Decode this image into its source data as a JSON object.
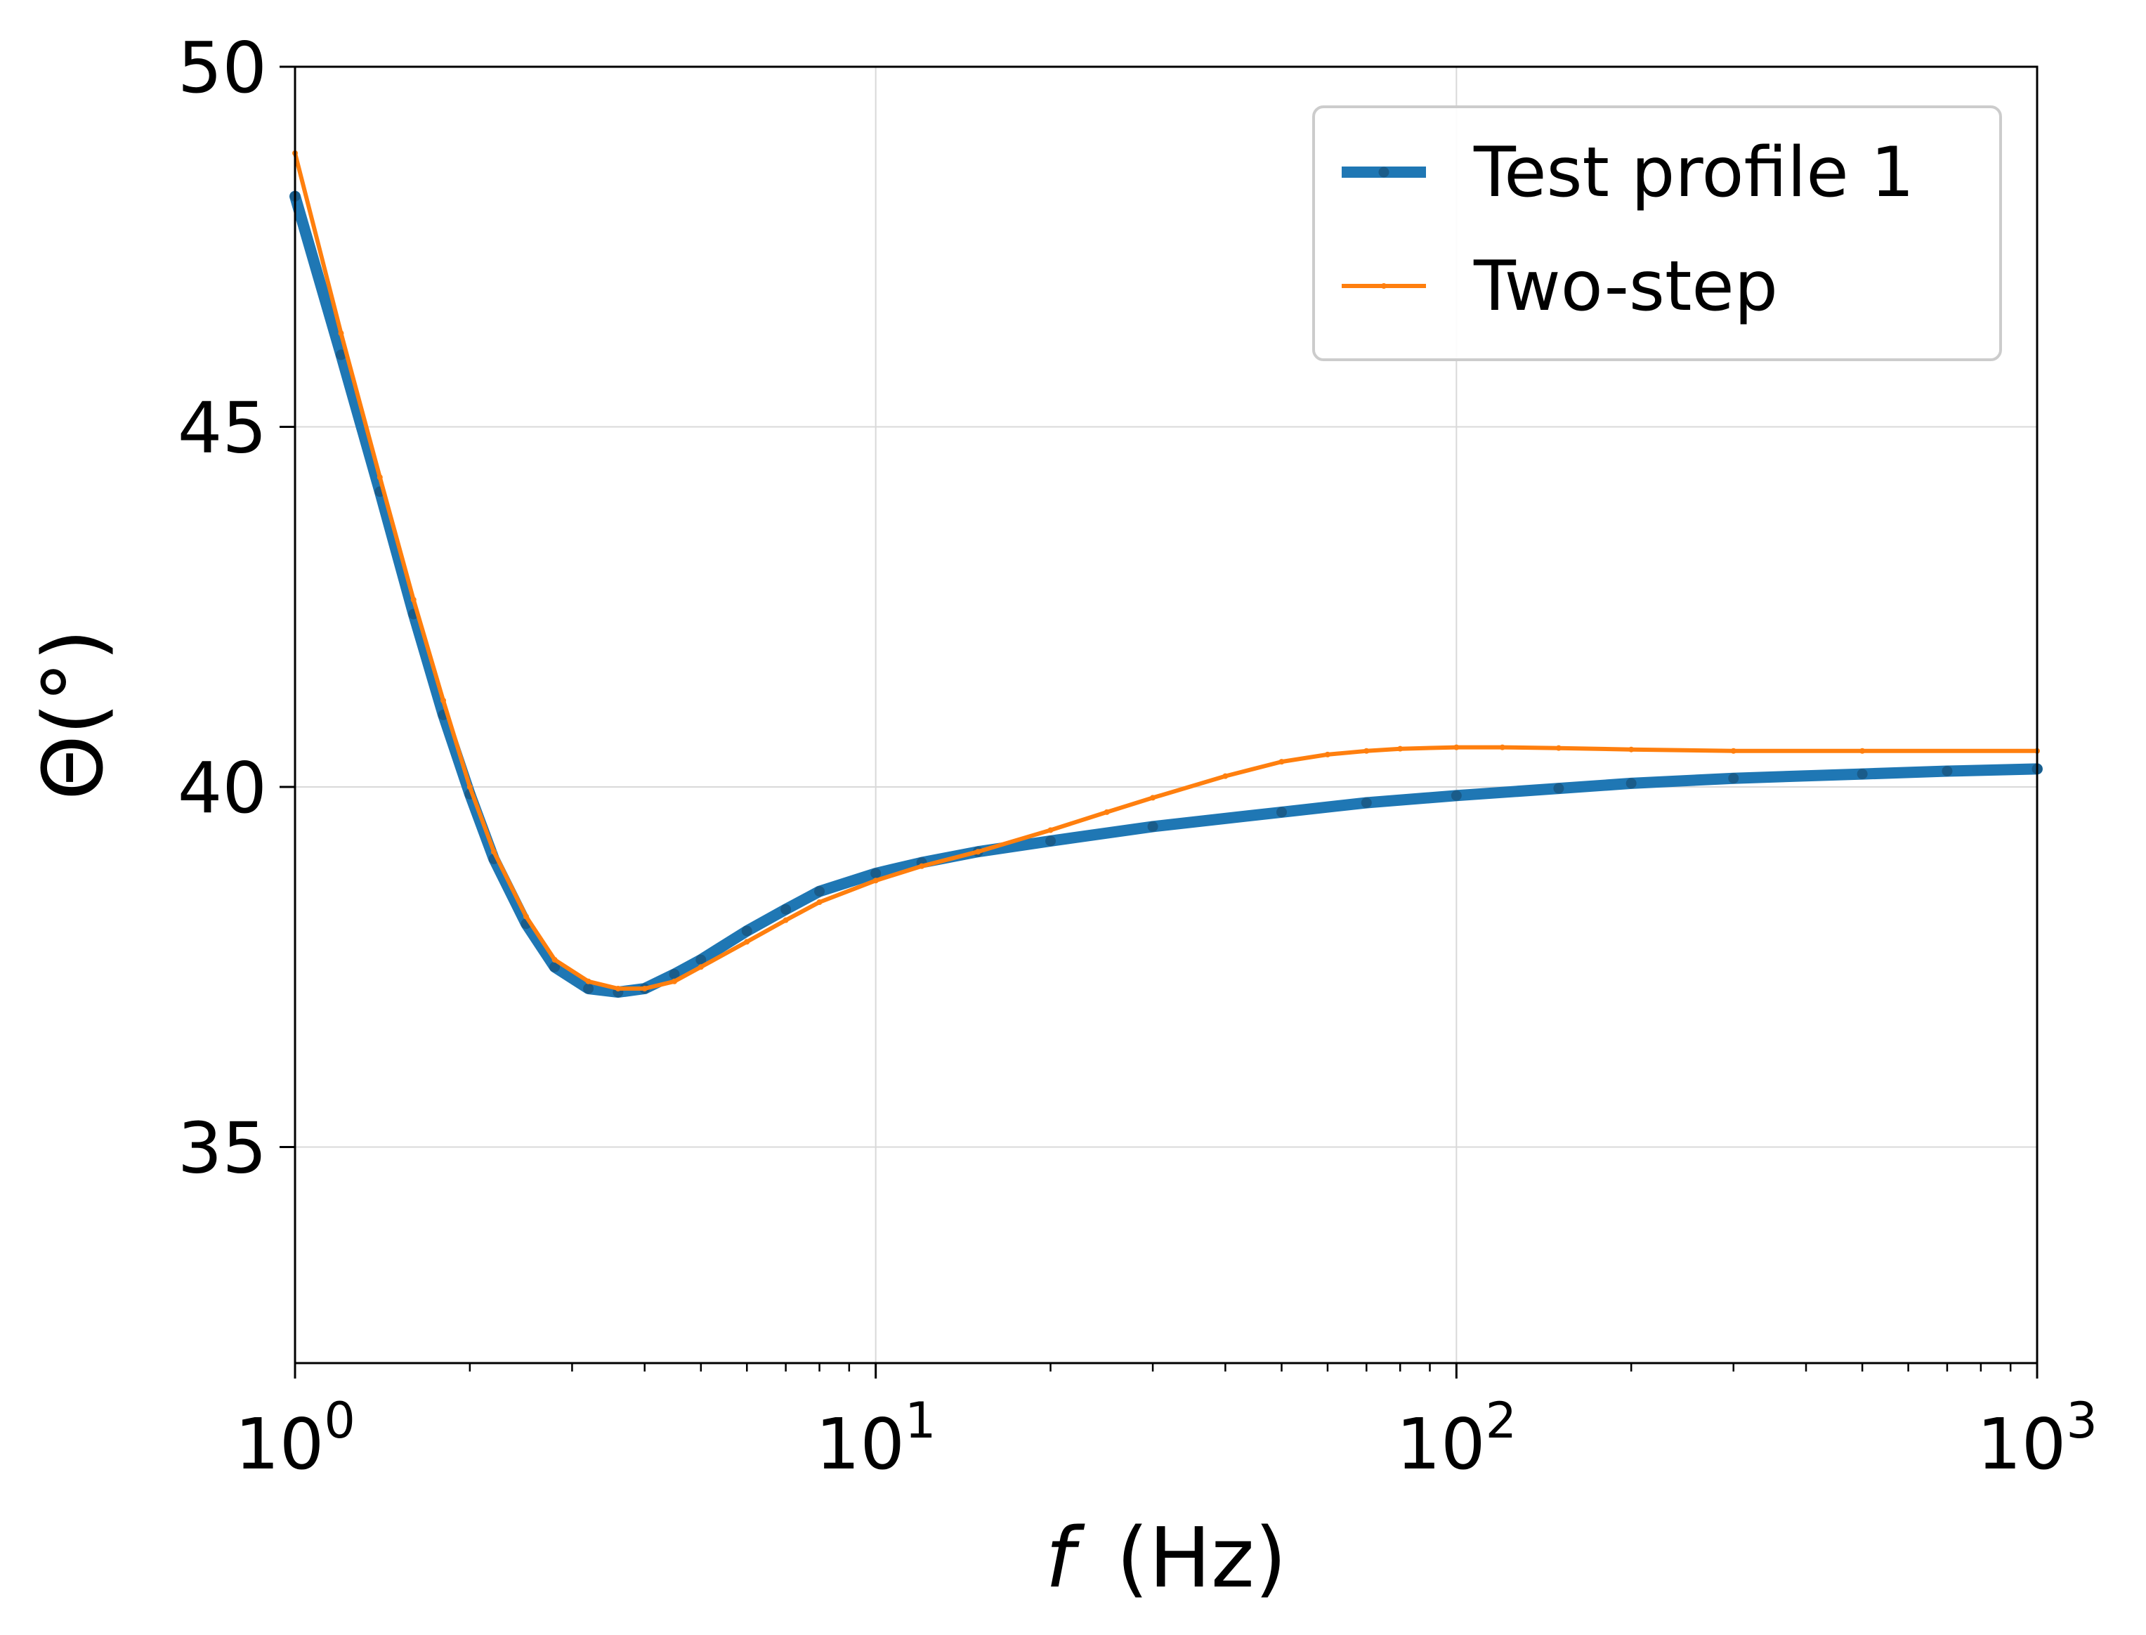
{
  "chart_data": {
    "type": "line",
    "xlabel": "f",
    "xlabel_unit": "(Hz)",
    "ylabel": "Θ(°)",
    "xscale": "log",
    "xlim": [
      1,
      1000
    ],
    "ylim": [
      32,
      50
    ],
    "x_ticks": [
      {
        "value": 1,
        "base": "10",
        "exp": "0"
      },
      {
        "value": 10,
        "base": "10",
        "exp": "1"
      },
      {
        "value": 100,
        "base": "10",
        "exp": "2"
      },
      {
        "value": 1000,
        "base": "10",
        "exp": "3"
      }
    ],
    "y_ticks": [
      {
        "value": 35,
        "label": "35"
      },
      {
        "value": 40,
        "label": "40"
      },
      {
        "value": 45,
        "label": "45"
      },
      {
        "value": 50,
        "label": "50"
      }
    ],
    "grid": true,
    "legend_position": "top-right",
    "series": [
      {
        "name": "Test profile 1",
        "color": "#1f77b4",
        "x": [
          1,
          1.2,
          1.4,
          1.6,
          1.8,
          2,
          2.2,
          2.5,
          2.8,
          3.2,
          3.6,
          4,
          4.5,
          5,
          6,
          7,
          8,
          10,
          12,
          15,
          20,
          30,
          50,
          70,
          100,
          150,
          200,
          300,
          500,
          700,
          1000
        ],
        "y": [
          48.2,
          46.0,
          44.1,
          42.4,
          41.0,
          39.9,
          39.0,
          38.1,
          37.5,
          37.2,
          37.15,
          37.2,
          37.4,
          37.6,
          38.0,
          38.3,
          38.55,
          38.8,
          38.95,
          39.1,
          39.25,
          39.45,
          39.65,
          39.78,
          39.88,
          39.98,
          40.05,
          40.12,
          40.18,
          40.22,
          40.25
        ]
      },
      {
        "name": "Two-step",
        "color": "#ff7f0e",
        "x": [
          1,
          1.2,
          1.4,
          1.6,
          1.8,
          2,
          2.2,
          2.5,
          2.8,
          3.2,
          3.6,
          4,
          4.5,
          5,
          6,
          7,
          8,
          10,
          12,
          15,
          20,
          25,
          30,
          40,
          50,
          60,
          70,
          80,
          100,
          120,
          150,
          200,
          300,
          500,
          1000
        ],
        "y": [
          48.8,
          46.3,
          44.3,
          42.6,
          41.2,
          40.0,
          39.1,
          38.2,
          37.6,
          37.3,
          37.2,
          37.2,
          37.3,
          37.5,
          37.85,
          38.15,
          38.4,
          38.7,
          38.9,
          39.1,
          39.4,
          39.65,
          39.85,
          40.15,
          40.35,
          40.45,
          40.5,
          40.53,
          40.55,
          40.55,
          40.54,
          40.52,
          40.5,
          40.5,
          40.5
        ]
      }
    ]
  }
}
